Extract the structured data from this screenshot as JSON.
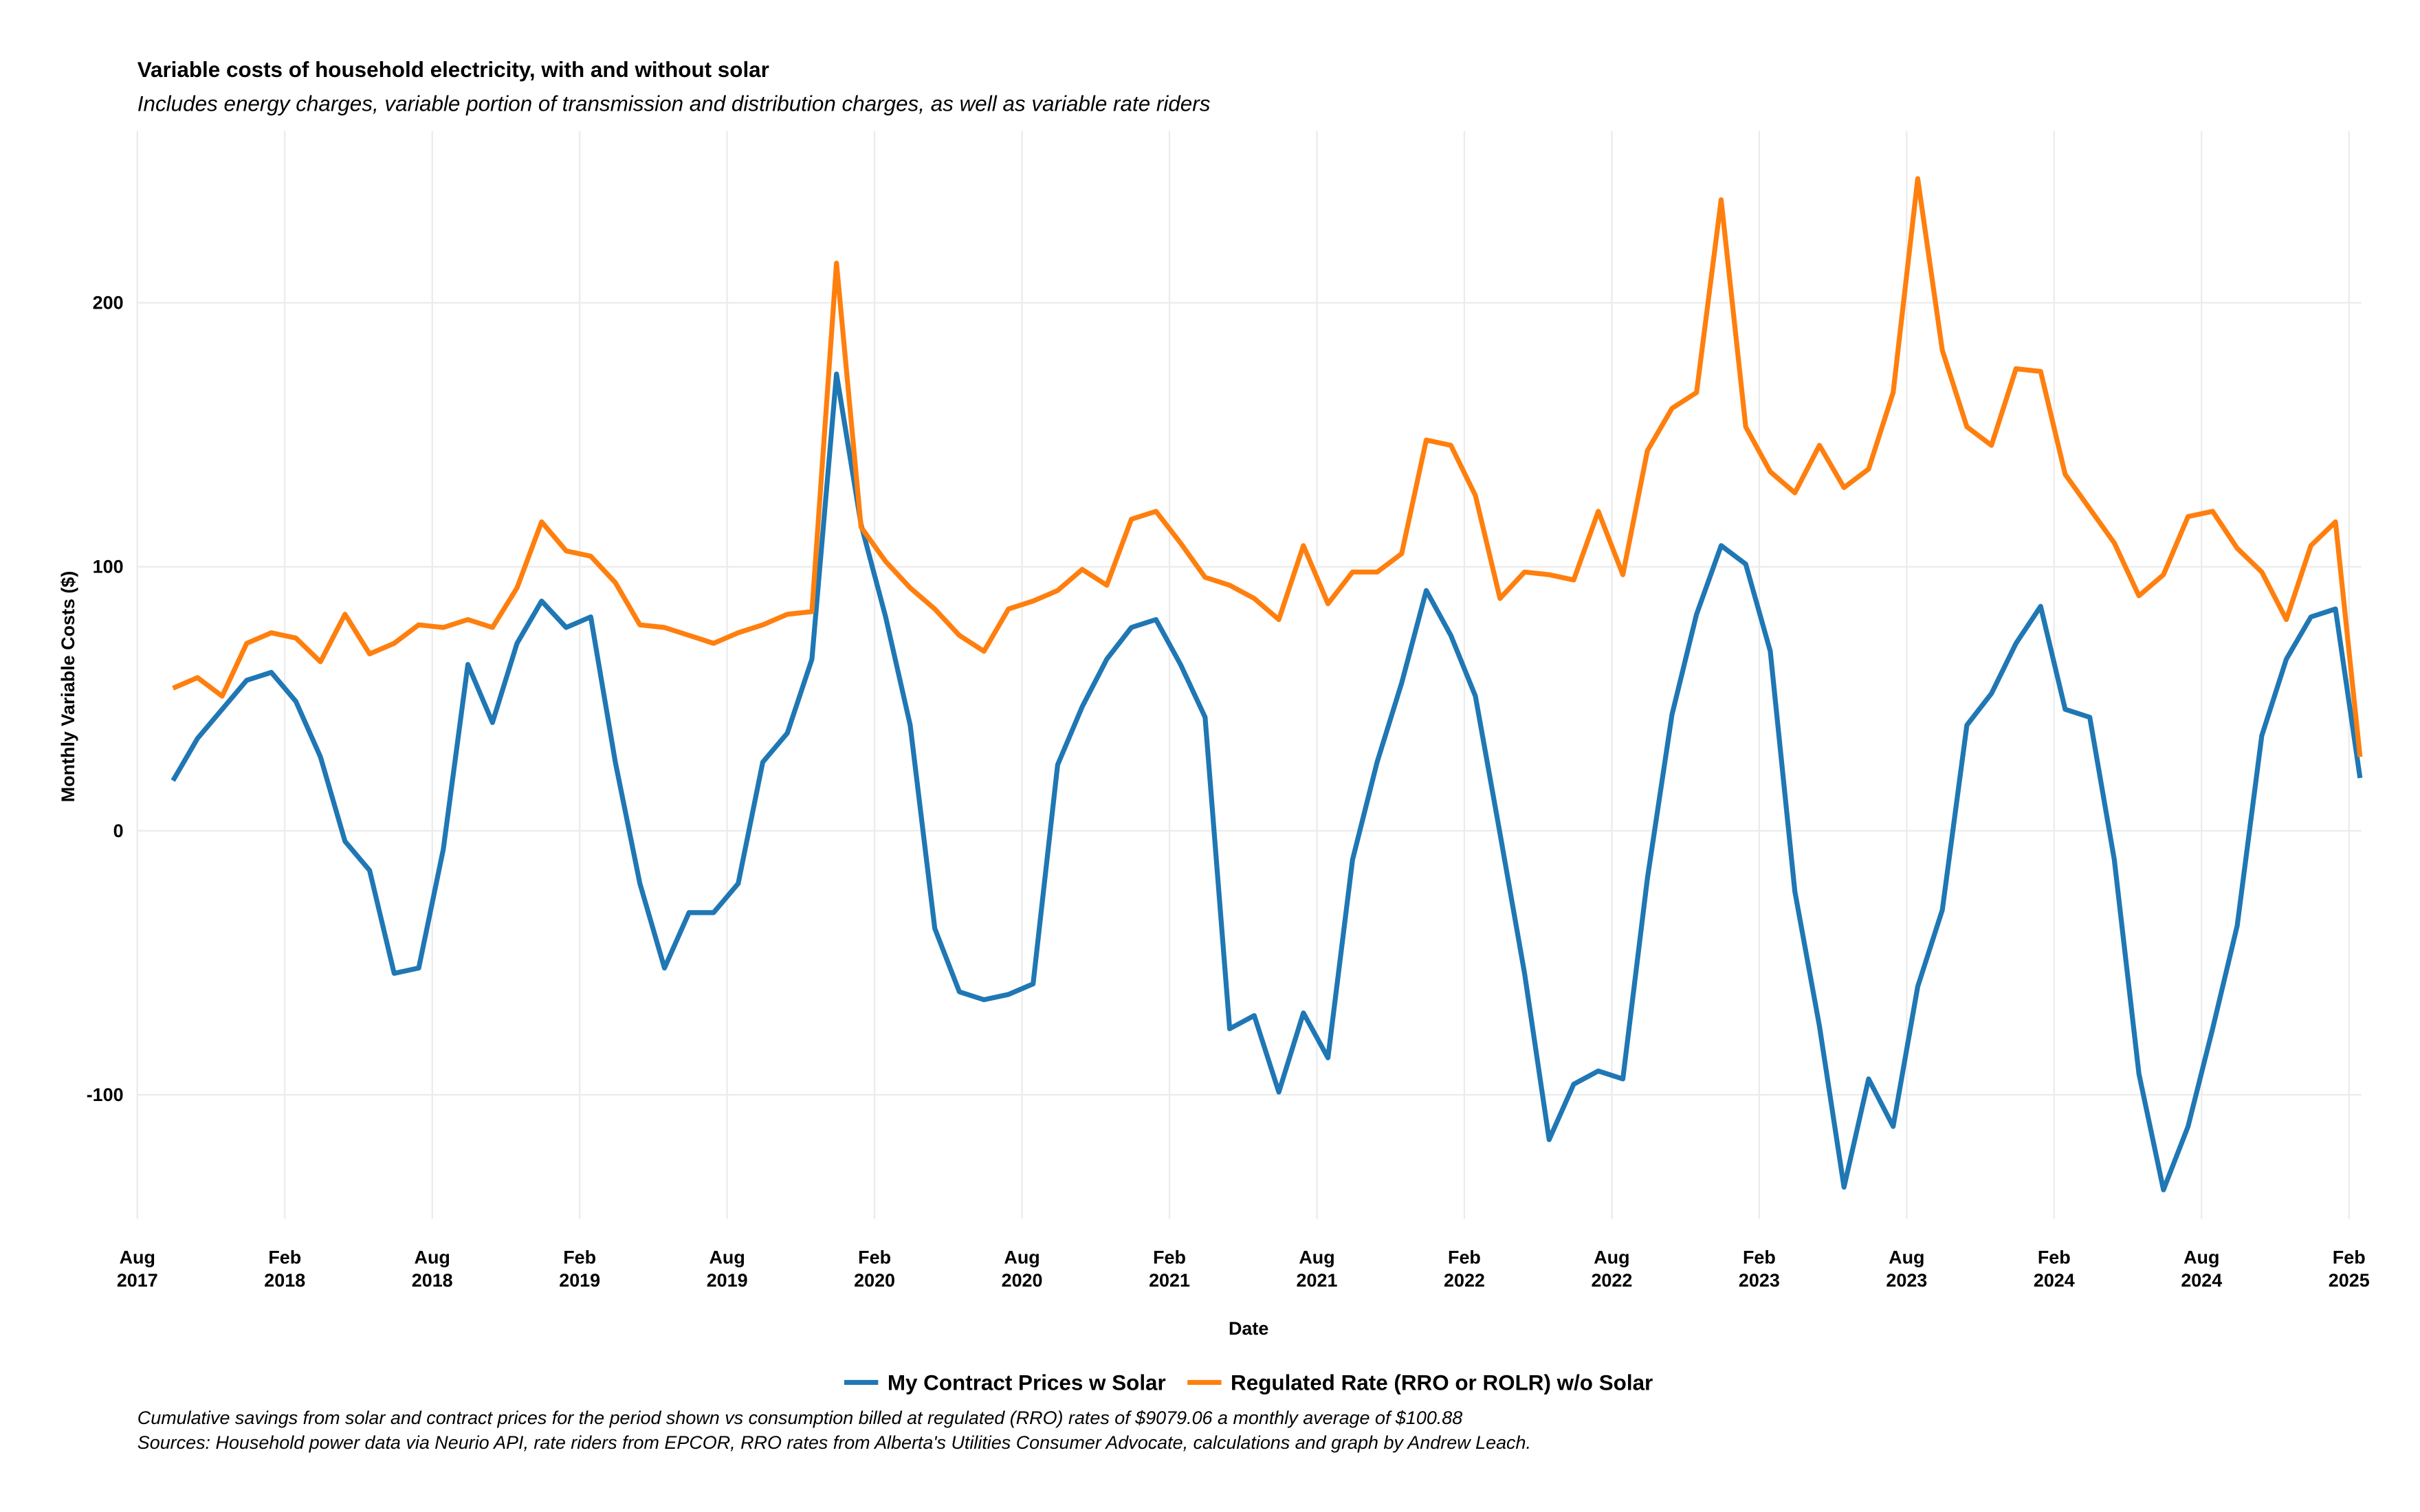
{
  "chart_data": {
    "type": "line",
    "title": "Variable costs of household electricity, with and without solar",
    "subtitle": "Includes energy charges, variable portion of transmission and distribution charges, as well as variable rate riders",
    "x_label": "Date",
    "y_label": "Monthly Variable Costs ($)",
    "caption": [
      "Cumulative savings from solar and contract prices for the period shown vs consumption billed at regulated (RRO) rates of $9079.06 a monthly average of $100.88",
      "Sources: Household power data via Neurio API, rate riders from EPCOR, RRO rates from Alberta's Utilities Consumer Advocate, calculations and graph by Andrew Leach."
    ],
    "x": [
      "2017-09",
      "2017-10",
      "2017-11",
      "2017-12",
      "2018-01",
      "2018-02",
      "2018-03",
      "2018-04",
      "2018-05",
      "2018-06",
      "2018-07",
      "2018-08",
      "2018-09",
      "2018-10",
      "2018-11",
      "2018-12",
      "2019-01",
      "2019-02",
      "2019-03",
      "2019-04",
      "2019-05",
      "2019-06",
      "2019-07",
      "2019-08",
      "2019-09",
      "2019-10",
      "2019-11",
      "2019-12",
      "2020-01",
      "2020-02",
      "2020-03",
      "2020-04",
      "2020-05",
      "2020-06",
      "2020-07",
      "2020-08",
      "2020-09",
      "2020-10",
      "2020-11",
      "2020-12",
      "2021-01",
      "2021-02",
      "2021-03",
      "2021-04",
      "2021-05",
      "2021-06",
      "2021-07",
      "2021-08",
      "2021-09",
      "2021-10",
      "2021-11",
      "2021-12",
      "2022-01",
      "2022-02",
      "2022-03",
      "2022-04",
      "2022-05",
      "2022-06",
      "2022-07",
      "2022-08",
      "2022-09",
      "2022-10",
      "2022-11",
      "2022-12",
      "2023-01",
      "2023-02",
      "2023-03",
      "2023-04",
      "2023-05",
      "2023-06",
      "2023-07",
      "2023-08",
      "2023-09",
      "2023-10",
      "2023-11",
      "2023-12",
      "2024-01",
      "2024-02",
      "2024-03",
      "2024-04",
      "2024-05",
      "2024-06",
      "2024-07",
      "2024-08",
      "2024-09",
      "2024-10",
      "2024-11",
      "2024-12",
      "2025-01",
      "2025-02"
    ],
    "series": [
      {
        "name": "My Contract Prices w Solar",
        "color": "#1f77b4",
        "values": [
          19,
          35,
          46,
          57,
          60,
          49,
          28,
          -4,
          -15,
          -54,
          -52,
          -7,
          63,
          41,
          71,
          87,
          77,
          81,
          26,
          -20,
          -52,
          -31,
          -31,
          -20,
          26,
          37,
          65,
          173,
          116,
          81,
          40,
          -37,
          -61,
          -64,
          -62,
          -58,
          25,
          47,
          65,
          77,
          80,
          63,
          43,
          -75,
          -70,
          -99,
          -69,
          -86,
          -11,
          26,
          56,
          91,
          74,
          51,
          -1,
          -54,
          -117,
          -96,
          -91,
          -94,
          -18,
          44,
          82,
          108,
          101,
          68,
          -23,
          -74,
          -135,
          -94,
          -112,
          -59,
          -30,
          40,
          52,
          71,
          85,
          46,
          43,
          -11,
          -92,
          -136,
          -112,
          -75,
          -36,
          36,
          65,
          81,
          84,
          20
        ]
      },
      {
        "name": "Regulated Rate (RRO or ROLR) w/o Solar",
        "color": "#ff7f0e",
        "values": [
          54,
          58,
          51,
          71,
          75,
          73,
          64,
          82,
          67,
          71,
          78,
          77,
          80,
          77,
          92,
          117,
          106,
          104,
          94,
          78,
          77,
          74,
          71,
          75,
          78,
          82,
          83,
          215,
          115,
          102,
          92,
          84,
          74,
          68,
          84,
          87,
          91,
          99,
          93,
          118,
          121,
          109,
          96,
          93,
          88,
          80,
          108,
          86,
          98,
          98,
          105,
          148,
          146,
          127,
          88,
          98,
          97,
          95,
          121,
          97,
          144,
          160,
          166,
          239,
          153,
          136,
          128,
          146,
          130,
          137,
          166,
          247,
          182,
          153,
          146,
          175,
          174,
          135,
          122,
          109,
          89,
          97,
          119,
          121,
          107,
          98,
          80,
          108,
          117,
          28
        ]
      }
    ],
    "xlim": [
      "2017-08",
      "2025-02"
    ],
    "xticks": [
      {
        "value": "2017-08",
        "label": [
          "Aug",
          "2017"
        ]
      },
      {
        "value": "2018-02",
        "label": [
          "Feb",
          "2018"
        ]
      },
      {
        "value": "2018-08",
        "label": [
          "Aug",
          "2018"
        ]
      },
      {
        "value": "2019-02",
        "label": [
          "Feb",
          "2019"
        ]
      },
      {
        "value": "2019-08",
        "label": [
          "Aug",
          "2019"
        ]
      },
      {
        "value": "2020-02",
        "label": [
          "Feb",
          "2020"
        ]
      },
      {
        "value": "2020-08",
        "label": [
          "Aug",
          "2020"
        ]
      },
      {
        "value": "2021-02",
        "label": [
          "Feb",
          "2021"
        ]
      },
      {
        "value": "2021-08",
        "label": [
          "Aug",
          "2021"
        ]
      },
      {
        "value": "2022-02",
        "label": [
          "Feb",
          "2022"
        ]
      },
      {
        "value": "2022-08",
        "label": [
          "Aug",
          "2022"
        ]
      },
      {
        "value": "2023-02",
        "label": [
          "Feb",
          "2023"
        ]
      },
      {
        "value": "2023-08",
        "label": [
          "Aug",
          "2023"
        ]
      },
      {
        "value": "2024-02",
        "label": [
          "Feb",
          "2024"
        ]
      },
      {
        "value": "2024-08",
        "label": [
          "Aug",
          "2024"
        ]
      },
      {
        "value": "2025-02",
        "label": [
          "Feb",
          "2025"
        ]
      }
    ],
    "ylim": [
      -147,
      265
    ],
    "yticks": [
      -100,
      0,
      100,
      200
    ],
    "grid": true,
    "legend": "bottom"
  }
}
